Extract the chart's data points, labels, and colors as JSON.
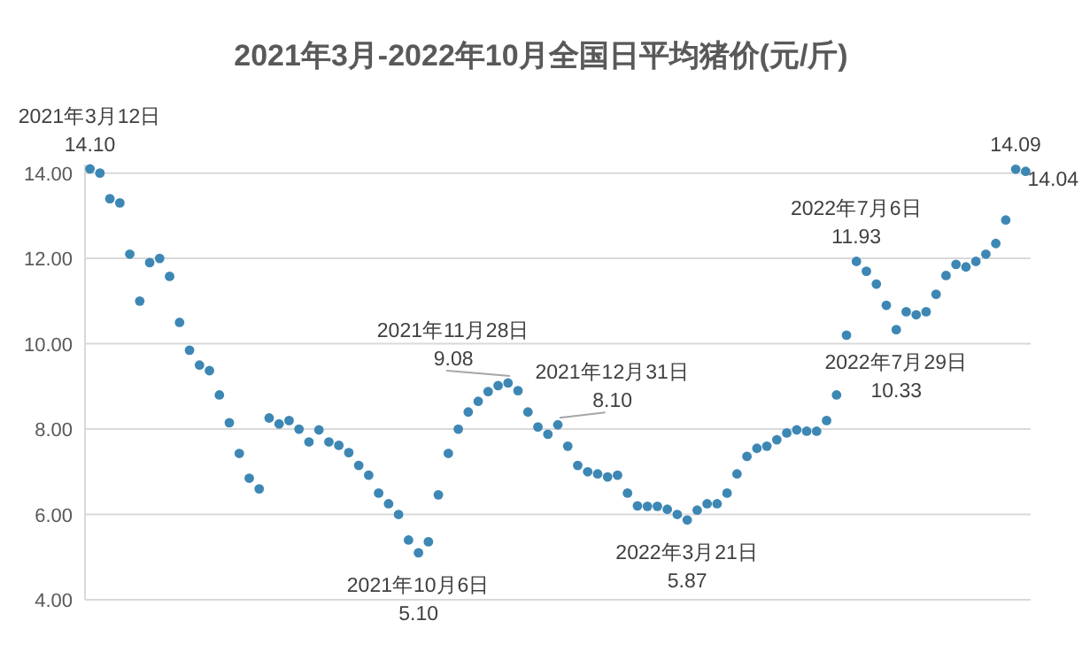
{
  "chart_data": {
    "type": "scatter",
    "title": "2021年3月-2022年10月全国日平均猪价(元/斤)",
    "categories": [
      null,
      null,
      null,
      null,
      null,
      null,
      null,
      null,
      null,
      null,
      null,
      null,
      null,
      null,
      null,
      null,
      null,
      null,
      null,
      null,
      null,
      null,
      null,
      null,
      null,
      null,
      null,
      null,
      null,
      null,
      null,
      null,
      null,
      null,
      null,
      null,
      null,
      null,
      null,
      null,
      null,
      null,
      null,
      null,
      null,
      null,
      null,
      null,
      null,
      null,
      null,
      null,
      null,
      null,
      null,
      null,
      null,
      null,
      null,
      null,
      null,
      null,
      null,
      null,
      null,
      null,
      null,
      null,
      null,
      null,
      null,
      null,
      null,
      null,
      null,
      null,
      null,
      null,
      null,
      null,
      null,
      null,
      null,
      null,
      null,
      null,
      null,
      null,
      null,
      null,
      null,
      null,
      null,
      null,
      null
    ],
    "values": [
      14.1,
      14.0,
      13.4,
      13.3,
      12.1,
      11.0,
      11.9,
      12.0,
      11.58,
      10.5,
      9.85,
      9.5,
      9.37,
      8.8,
      8.15,
      7.43,
      6.85,
      6.6,
      8.26,
      8.12,
      8.2,
      8.0,
      7.7,
      7.98,
      7.7,
      7.62,
      7.45,
      7.15,
      6.92,
      6.5,
      6.25,
      6.0,
      5.4,
      5.1,
      5.36,
      6.46,
      7.43,
      8.0,
      8.4,
      8.65,
      8.88,
      9.02,
      9.08,
      8.9,
      8.4,
      8.05,
      7.88,
      8.1,
      7.6,
      7.15,
      7.0,
      6.95,
      6.88,
      6.92,
      6.5,
      6.2,
      6.19,
      6.19,
      6.12,
      6.0,
      5.87,
      6.1,
      6.25,
      6.25,
      6.5,
      6.95,
      7.36,
      7.55,
      7.6,
      7.75,
      7.91,
      7.98,
      7.95,
      7.95,
      8.2,
      8.8,
      10.2,
      11.93,
      11.7,
      11.4,
      10.9,
      10.33,
      10.75,
      10.68,
      10.75,
      11.16,
      11.6,
      11.86,
      11.8,
      11.93,
      12.1,
      12.35,
      12.9,
      14.09,
      14.04
    ],
    "value_labels": [
      "14.10",
      null,
      null,
      null,
      null,
      null,
      null,
      null,
      null,
      null,
      null,
      null,
      null,
      null,
      null,
      null,
      null,
      null,
      null,
      null,
      null,
      null,
      null,
      null,
      null,
      null,
      null,
      null,
      null,
      null,
      null,
      null,
      null,
      "5.10",
      null,
      null,
      null,
      null,
      null,
      null,
      null,
      null,
      "9.08",
      null,
      null,
      null,
      null,
      "8.10",
      null,
      null,
      null,
      null,
      null,
      null,
      null,
      null,
      null,
      null,
      null,
      null,
      "5.87",
      null,
      null,
      null,
      null,
      null,
      null,
      null,
      null,
      null,
      null,
      null,
      null,
      null,
      null,
      null,
      null,
      "11.93",
      null,
      null,
      null,
      "10.33",
      null,
      null,
      null,
      null,
      null,
      null,
      null,
      null,
      null,
      null,
      null,
      "14.09",
      "14.04"
    ],
    "color": "#3d87b5",
    "marker": "circle",
    "grid": "y",
    "ylim": [
      4,
      14.2
    ],
    "yticks": [
      {
        "value": 4,
        "label": "4.00"
      },
      {
        "value": 6,
        "label": "6.00"
      },
      {
        "value": 8,
        "label": "8.00"
      },
      {
        "value": 10,
        "label": "10.00"
      },
      {
        "value": 12,
        "label": "12.00"
      },
      {
        "value": 14,
        "label": "14.00"
      }
    ],
    "annotations": [
      "2021年3月12日",
      "2021年10月6日",
      "2021年11月28日",
      "2021年12月31日",
      "2022年3月21日",
      "2022年7月6日",
      "2022年7月29日"
    ]
  }
}
